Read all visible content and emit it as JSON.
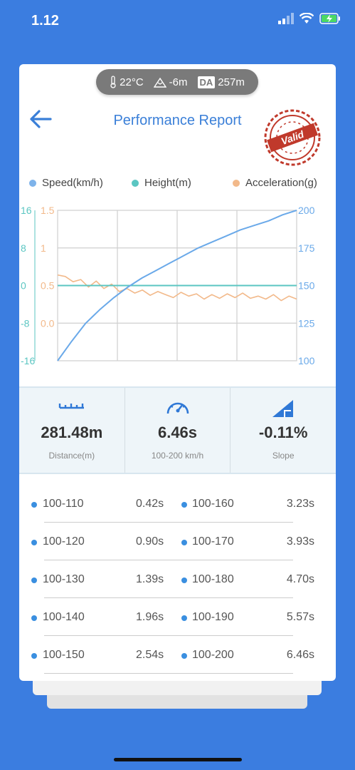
{
  "status_bar": {
    "time": "1.12"
  },
  "conditions": {
    "temperature": "22°C",
    "altitude": "-6m",
    "da_label": "DA",
    "density_altitude": "257m"
  },
  "header": {
    "title": "Performance Report",
    "stamp_text": "Valid"
  },
  "legend": [
    {
      "label": "Speed(km/h)",
      "color": "#7eb3ea"
    },
    {
      "label": "Height(m)",
      "color": "#5bc6c2"
    },
    {
      "label": "Acceleration(g)",
      "color": "#f2b98a"
    }
  ],
  "chart_data": {
    "type": "line",
    "height_axis": {
      "ticks": [
        "16",
        "8",
        "0",
        "-8",
        "-16"
      ],
      "range": [
        -16,
        16
      ]
    },
    "accel_axis": {
      "ticks": [
        "1.5",
        "1",
        "0.5",
        "0.0"
      ],
      "range": [
        -0.5,
        1.5
      ]
    },
    "speed_axis": {
      "ticks": [
        "200",
        "175",
        "150",
        "125",
        "100"
      ],
      "range": [
        100,
        200
      ]
    },
    "series": [
      {
        "name": "Speed(km/h)",
        "axis": "speed",
        "values": [
          100,
          113,
          125,
          134,
          142,
          149,
          155,
          160,
          165,
          170,
          175,
          179,
          183,
          187,
          190,
          193,
          197,
          200
        ]
      },
      {
        "name": "Height(m)",
        "axis": "height",
        "values": [
          0,
          0,
          0,
          0,
          0,
          0,
          0,
          0,
          0,
          0,
          0,
          0,
          0,
          0,
          0,
          0,
          0,
          0
        ]
      },
      {
        "name": "Acceleration(g)",
        "axis": "accel",
        "values": [
          0.64,
          0.62,
          0.55,
          0.58,
          0.48,
          0.56,
          0.46,
          0.52,
          0.42,
          0.46,
          0.4,
          0.44,
          0.37,
          0.42,
          0.38,
          0.34,
          0.41,
          0.36,
          0.39,
          0.32,
          0.38,
          0.33,
          0.39,
          0.34,
          0.4,
          0.33,
          0.36,
          0.32,
          0.38,
          0.3,
          0.36,
          0.32
        ]
      }
    ]
  },
  "stats": [
    {
      "value": "281.48m",
      "label": "Distance(m)",
      "icon": "ruler-icon"
    },
    {
      "value": "6.46s",
      "label": "100-200 km/h",
      "icon": "speedometer-icon"
    },
    {
      "value": "-0.11%",
      "label": "Slope",
      "icon": "slope-icon"
    }
  ],
  "splits": [
    {
      "left_range": "100-110",
      "left_time": "0.42s",
      "right_range": "100-160",
      "right_time": "3.23s"
    },
    {
      "left_range": "100-120",
      "left_time": "0.90s",
      "right_range": "100-170",
      "right_time": "3.93s"
    },
    {
      "left_range": "100-130",
      "left_time": "1.39s",
      "right_range": "100-180",
      "right_time": "4.70s"
    },
    {
      "left_range": "100-140",
      "left_time": "1.96s",
      "right_range": "100-190",
      "right_time": "5.57s"
    },
    {
      "left_range": "100-150",
      "left_time": "2.54s",
      "right_range": "100-200",
      "right_time": "6.46s"
    }
  ]
}
